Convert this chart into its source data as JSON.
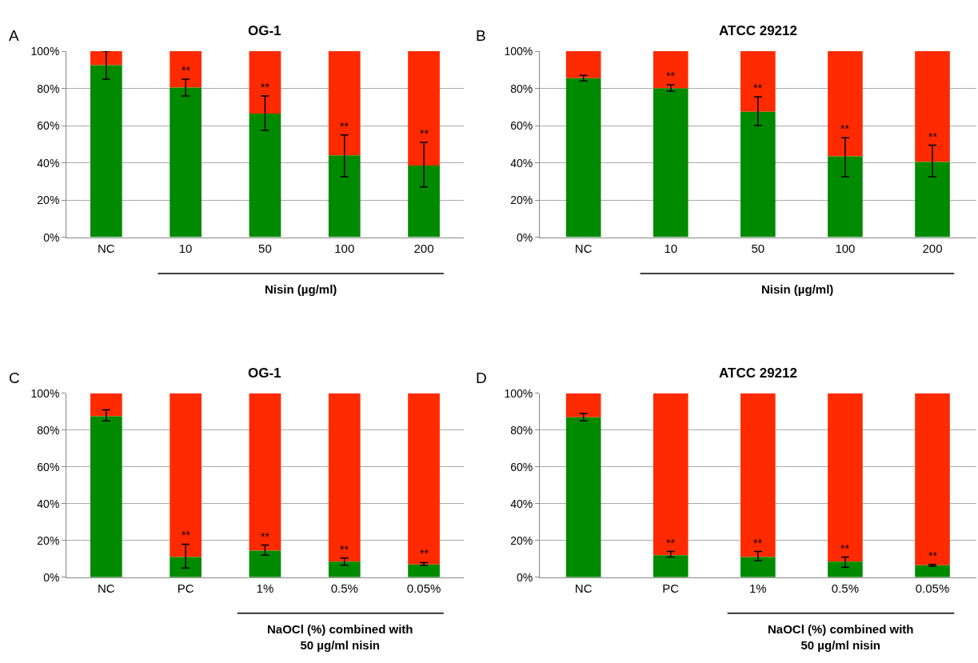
{
  "chart_data": [
    {
      "type": "bar",
      "title": "OG-1",
      "xlabel": "Nisin (µg/ml)",
      "categories": [
        "NC",
        "10",
        "50",
        "100",
        "200"
      ],
      "stacked": true,
      "ylim": [
        0,
        100
      ],
      "yticks": [
        {
          "value": 0,
          "label": "0%"
        },
        {
          "value": 20,
          "label": "20%"
        },
        {
          "value": 40,
          "label": "40%"
        },
        {
          "value": 60,
          "label": "60%"
        },
        {
          "value": 80,
          "label": "80%"
        },
        {
          "value": 100,
          "label": "100%"
        }
      ],
      "grid": "y",
      "series": [
        {
          "color": "#008a00",
          "values": [
            92.5,
            80.5,
            66.5,
            44,
            38.5
          ],
          "errors": [
            [
              85,
              100
            ],
            [
              76,
              85
            ],
            [
              57.5,
              76
            ],
            [
              32.5,
              55
            ],
            [
              27,
              51
            ]
          ]
        },
        {
          "color": "#ff2a00",
          "values": [
            7.5,
            19.5,
            33.5,
            56,
            61.5
          ]
        }
      ],
      "annotations": [
        "A",
        "**",
        "**",
        "**",
        "**"
      ]
    },
    {
      "type": "bar",
      "title": "ATCC 29212",
      "xlabel": "Nisin (µg/ml)",
      "categories": [
        "NC",
        "10",
        "50",
        "100",
        "200"
      ],
      "stacked": true,
      "ylim": [
        0,
        100
      ],
      "yticks": [
        {
          "value": 0,
          "label": "0%"
        },
        {
          "value": 20,
          "label": "20%"
        },
        {
          "value": 40,
          "label": "40%"
        },
        {
          "value": 60,
          "label": "60%"
        },
        {
          "value": 80,
          "label": "80%"
        },
        {
          "value": 100,
          "label": "100%"
        }
      ],
      "grid": "y",
      "series": [
        {
          "color": "#008a00",
          "values": [
            85.5,
            80,
            67.5,
            43.5,
            40.5
          ],
          "errors": [
            [
              84,
              87
            ],
            [
              78.5,
              82
            ],
            [
              60,
              75.5
            ],
            [
              32.5,
              53.5
            ],
            [
              32.5,
              49.5
            ]
          ]
        },
        {
          "color": "#ff2a00",
          "values": [
            14.5,
            20,
            32.5,
            56.5,
            59.5
          ]
        }
      ],
      "annotations": [
        "B",
        "**",
        "**",
        "**",
        "**"
      ]
    },
    {
      "type": "bar",
      "title": "OG-1",
      "xlabel": "NaOCl (%) combined with\n50 µg/ml nisin",
      "categories": [
        "NC",
        "PC",
        "1%",
        "0.5%",
        "0.05%"
      ],
      "stacked": true,
      "ylim": [
        0,
        100
      ],
      "yticks": [
        {
          "value": 0,
          "label": "0%"
        },
        {
          "value": 20,
          "label": "20%"
        },
        {
          "value": 40,
          "label": "40%"
        },
        {
          "value": 60,
          "label": "60%"
        },
        {
          "value": 80,
          "label": "80%"
        },
        {
          "value": 100,
          "label": "100%"
        }
      ],
      "grid": "y",
      "series": [
        {
          "color": "#008a00",
          "values": [
            87.5,
            11,
            14.5,
            8.5,
            7
          ],
          "errors": [
            [
              85,
              91
            ],
            [
              5,
              18
            ],
            [
              12,
              17.5
            ],
            [
              6.5,
              10.5
            ],
            [
              6.5,
              8
            ]
          ]
        },
        {
          "color": "#ff2a00",
          "values": [
            12.5,
            89,
            85.5,
            91.5,
            93
          ]
        }
      ],
      "annotations": [
        "C",
        "**",
        "**",
        "**",
        "**"
      ]
    },
    {
      "type": "bar",
      "title": "ATCC 29212",
      "xlabel": "NaOCl (%) combined with\n50 µg/ml nisin",
      "categories": [
        "NC",
        "PC",
        "1%",
        "0.5%",
        "0.05%"
      ],
      "stacked": true,
      "ylim": [
        0,
        100
      ],
      "yticks": [
        {
          "value": 0,
          "label": "0%"
        },
        {
          "value": 20,
          "label": "20%"
        },
        {
          "value": 40,
          "label": "40%"
        },
        {
          "value": 60,
          "label": "60%"
        },
        {
          "value": 80,
          "label": "80%"
        },
        {
          "value": 100,
          "label": "100%"
        }
      ],
      "grid": "y",
      "series": [
        {
          "color": "#008a00",
          "values": [
            87,
            12,
            11,
            8.5,
            6.5
          ],
          "errors": [
            [
              85,
              89
            ],
            [
              11,
              14
            ],
            [
              9,
              14
            ],
            [
              5.5,
              11
            ],
            [
              6,
              7
            ]
          ]
        },
        {
          "color": "#ff2a00",
          "values": [
            13,
            88,
            89,
            91.5,
            93.5
          ]
        }
      ],
      "annotations": [
        "D",
        "**",
        "**",
        "**",
        "**"
      ]
    }
  ]
}
